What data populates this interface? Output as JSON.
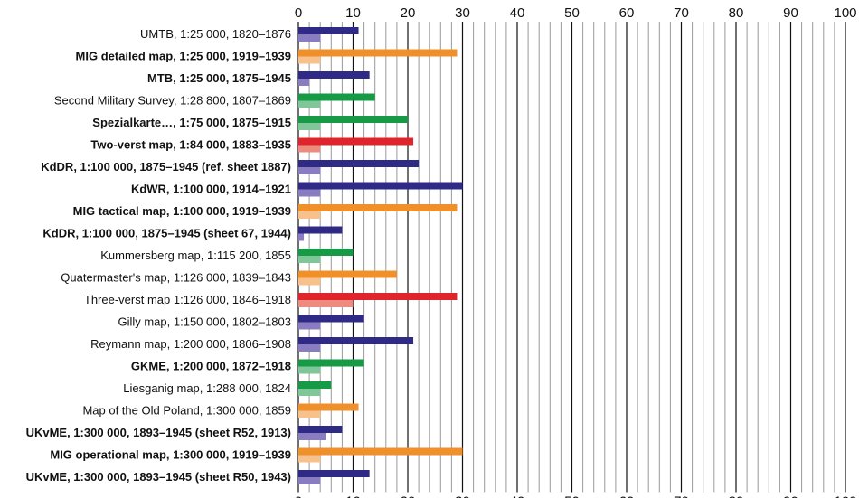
{
  "chart_data": {
    "type": "bar",
    "orientation": "horizontal",
    "xlim": [
      0,
      100
    ],
    "major_ticks": [
      0,
      10,
      20,
      30,
      40,
      50,
      60,
      70,
      80,
      90,
      100
    ],
    "grid": true,
    "axis_labels_position": "top-and-bottom",
    "colors": {
      "blue": "#2e2a86",
      "blue_light": "#8a7cc0",
      "orange": "#f0902a",
      "orange_light": "#f8c08a",
      "green": "#169a45",
      "green_light": "#7fc698",
      "red": "#e0242b",
      "red_light": "#ee8a7e"
    },
    "categories": [
      {
        "label": "UMTB, 1:25 000, 1820–1876",
        "bold": false,
        "color": "blue",
        "value": 11,
        "value2": 4
      },
      {
        "label": "MIG detailed map, 1:25 000, 1919–1939",
        "bold": true,
        "color": "orange",
        "value": 29,
        "value2": 4
      },
      {
        "label": "MTB, 1:25 000, 1875–1945",
        "bold": true,
        "color": "blue",
        "value": 13,
        "value2": 2
      },
      {
        "label": "Second Military Survey, 1:28 800, 1807–1869",
        "bold": false,
        "color": "green",
        "value": 14,
        "value2": 4
      },
      {
        "label": "Spezialkarte…, 1:75 000, 1875–1915",
        "bold": true,
        "color": "green",
        "value": 20,
        "value2": 4
      },
      {
        "label": "Two-verst map, 1:84 000, 1883–1935",
        "bold": true,
        "color": "red",
        "value": 21,
        "value2": 4
      },
      {
        "label": "KdDR, 1:100 000, 1875–1945 (ref. sheet 1887)",
        "bold": true,
        "color": "blue",
        "value": 22,
        "value2": 4
      },
      {
        "label": "KdWR, 1:100 000, 1914–1921",
        "bold": true,
        "color": "blue",
        "value": 30,
        "value2": 4
      },
      {
        "label": "MIG tactical map, 1:100 000, 1919–1939",
        "bold": true,
        "color": "orange",
        "value": 29,
        "value2": 4
      },
      {
        "label": "KdDR, 1:100 000, 1875–1945 (sheet 67, 1944)",
        "bold": true,
        "color": "blue",
        "value": 8,
        "value2": 1
      },
      {
        "label": "Kummersberg map, 1:115 200, 1855",
        "bold": false,
        "color": "green",
        "value": 10,
        "value2": 4
      },
      {
        "label": "Quatermaster's map, 1:126 000, 1839–1843",
        "bold": false,
        "color": "orange",
        "value": 18,
        "value2": 4
      },
      {
        "label": "Three-verst map 1:126 000, 1846–1918",
        "bold": false,
        "color": "red",
        "value": 29,
        "value2": 10
      },
      {
        "label": "Gilly map, 1:150 000, 1802–1803",
        "bold": false,
        "color": "blue",
        "value": 12,
        "value2": 4
      },
      {
        "label": "Reymann map, 1:200 000, 1806–1908",
        "bold": false,
        "color": "blue",
        "value": 21,
        "value2": 4
      },
      {
        "label": "GKME, 1:200 000, 1872–1918",
        "bold": true,
        "color": "green",
        "value": 12,
        "value2": 4
      },
      {
        "label": "Liesganig map, 1:288 000, 1824",
        "bold": false,
        "color": "green",
        "value": 6,
        "value2": 4
      },
      {
        "label": "Map of the Old Poland, 1:300 000, 1859",
        "bold": false,
        "color": "orange",
        "value": 11,
        "value2": 4
      },
      {
        "label": "UKvME, 1:300 000, 1893–1945 (sheet R52, 1913)",
        "bold": true,
        "color": "blue",
        "value": 8,
        "value2": 5
      },
      {
        "label": "MIG operational map, 1:300 000, 1919–1939",
        "bold": true,
        "color": "orange",
        "value": 30,
        "value2": 4
      },
      {
        "label": "UKvME, 1:300 000, 1893–1945 (sheet R50, 1943)",
        "bold": true,
        "color": "blue",
        "value": 13,
        "value2": 4
      }
    ]
  }
}
